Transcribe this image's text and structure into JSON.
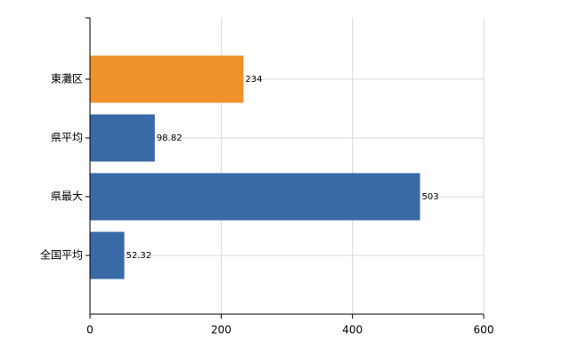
{
  "chart_data": {
    "type": "barh",
    "categories": [
      "東灘区",
      "県平均",
      "県最大",
      "全国平均"
    ],
    "values": [
      234,
      98.82,
      503,
      52.32
    ],
    "colors": [
      "#f0922b",
      "#3a69a8",
      "#3a69a8",
      "#3a69a8"
    ],
    "xlim": [
      0,
      600
    ],
    "xticks": [
      0,
      200,
      400,
      600
    ],
    "grid": true
  }
}
